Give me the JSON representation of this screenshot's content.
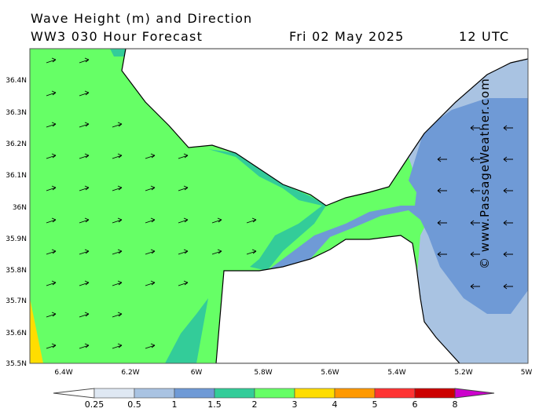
{
  "header": {
    "title": "Wave Height (m) and Direction",
    "model": "WW3 030 Hour Forecast",
    "date": "Fri 02 May 2025",
    "time": "12 UTC"
  },
  "credit": "© www.PassageWeather.com",
  "axes": {
    "lat_labels": [
      "36.4N",
      "36.3N",
      "36.2N",
      "36.1N",
      "36N",
      "35.9N",
      "35.8N",
      "35.7N",
      "35.6N",
      "35.5N"
    ],
    "lon_labels": [
      "6.4W",
      "6.2W",
      "6W",
      "5.8W",
      "5.6W",
      "5.4W",
      "5.2W",
      "5W"
    ]
  },
  "legend": {
    "tick_labels": [
      "0.25",
      "0.5",
      "1",
      "1.5",
      "2",
      "3",
      "4",
      "5",
      "6",
      "8"
    ],
    "colors": [
      "#dfe8f3",
      "#a9c3e2",
      "#6f9ad6",
      "#33cc99",
      "#66ff66",
      "#ffdd00",
      "#ff9900",
      "#ff3333",
      "#cc0000",
      "#cc00cc"
    ]
  },
  "fill_colors": {
    "land": "#ffffff",
    "light_blue": "#a9c3e2",
    "mid_blue": "#6f9ad6",
    "teal": "#33cc99",
    "green": "#66ff66",
    "yellow": "#ffdd00"
  }
}
